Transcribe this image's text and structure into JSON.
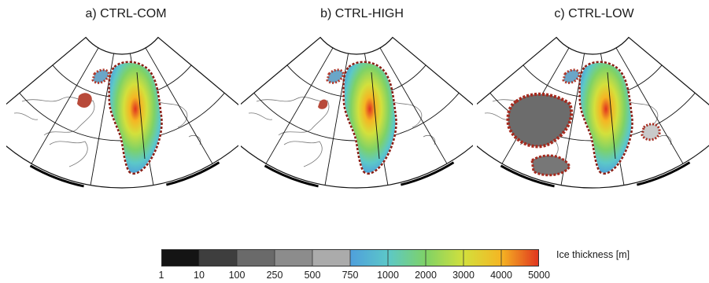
{
  "panels": [
    {
      "title": "a) CTRL-COM"
    },
    {
      "title": "b) CTRL-HIGH"
    },
    {
      "title": "c) CTRL-LOW"
    }
  ],
  "colorbar": {
    "label": "Ice thickness [m]",
    "ticks": [
      "1",
      "10",
      "100",
      "250",
      "500",
      "750",
      "1000",
      "2000",
      "3000",
      "4000",
      "5000"
    ],
    "colors": [
      "#141414",
      "#3e3e3e",
      "#6a6a6a",
      "#8c8c8c",
      "#ababab",
      "#4f9fdc",
      "#5cc8c8",
      "#7fd266",
      "#d3e03c",
      "#f5b523",
      "#e0321f"
    ]
  }
}
